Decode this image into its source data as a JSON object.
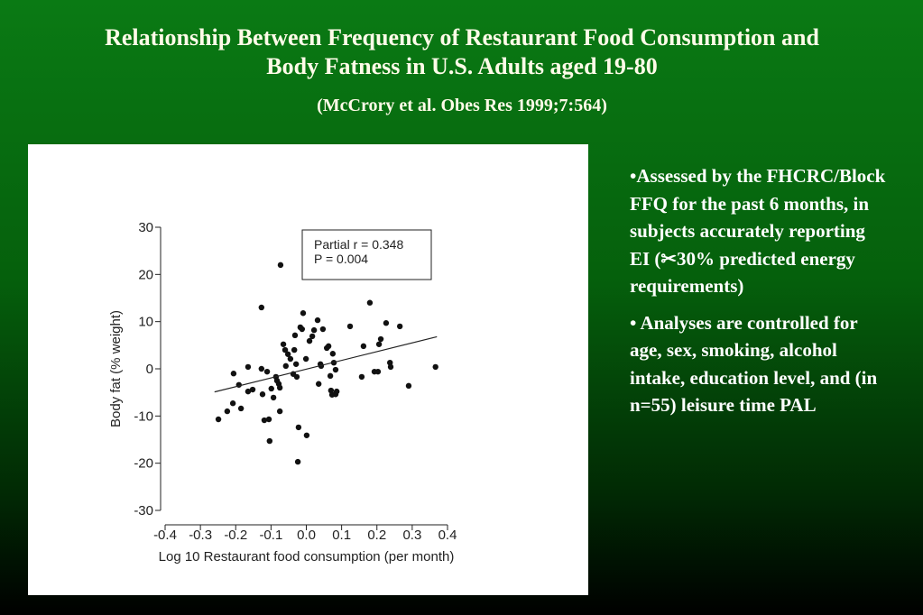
{
  "title": "Relationship Between Frequency of Restaurant Food Consumption and Body Fatness in U.S. Adults aged 19-80",
  "subtitle": "(McCrory et al. Obes Res 1999;7:564)",
  "bullets": [
    "•Assessed by the FHCRC/Block FFQ for the past 6 months, in subjects accurately reporting EI (✂30% predicted energy requirements)",
    "• Analyses are controlled for age, sex, smoking, alcohol intake, education level, and (in n=55) leisure time PAL"
  ],
  "chart_data": {
    "type": "scatter",
    "x_label": "Log 10 Restaurant food consumption (per month)",
    "y_label": "Body fat (% weight)",
    "annotations": [
      "Partial r = 0.348",
      "P = 0.004"
    ],
    "color": "#111111",
    "xlim": [
      -0.4,
      0.4
    ],
    "xticks": [
      -0.4,
      -0.3,
      -0.2,
      -0.1,
      {
        "value": 0,
        "label": "0.0"
      },
      0.1,
      0.2,
      0.3,
      0.4
    ],
    "ylim": [
      -30,
      30
    ],
    "yticks": [
      -30,
      -20,
      -10,
      0,
      10,
      20,
      30
    ],
    "x": [
      -0.249,
      -0.224,
      -0.208,
      -0.206,
      -0.191,
      -0.185,
      -0.165,
      -0.165,
      -0.152,
      -0.127,
      -0.127,
      -0.124,
      -0.119,
      -0.111,
      -0.106,
      -0.104,
      -0.099,
      -0.093,
      -0.086,
      -0.083,
      -0.078,
      -0.075,
      -0.075,
      -0.073,
      -0.065,
      -0.06,
      -0.058,
      -0.052,
      -0.045,
      -0.037,
      -0.034,
      -0.032,
      -0.029,
      -0.027,
      -0.024,
      -0.022,
      -0.017,
      -0.012,
      -0.009,
      -0.001,
      0.001,
      0.009,
      0.017,
      0.022,
      0.032,
      0.035,
      0.04,
      0.042,
      0.047,
      0.058,
      0.063,
      0.068,
      0.07,
      0.073,
      0.075,
      0.078,
      0.083,
      0.083,
      0.086,
      0.124,
      0.157,
      0.162,
      0.18,
      0.193,
      0.203,
      0.206,
      0.211,
      0.226,
      0.237,
      0.239,
      0.265,
      0.29,
      0.366
    ],
    "values": [
      -10.7,
      -9.0,
      -7.3,
      -1.0,
      -3.4,
      -8.4,
      0.4,
      -4.8,
      -4.4,
      13.0,
      0,
      -5.4,
      -10.9,
      -0.6,
      -10.7,
      -15.3,
      -4.2,
      -6.1,
      -1.7,
      -2.5,
      -3.2,
      -4.0,
      -9.0,
      22.0,
      5.2,
      4.0,
      0.6,
      3.1,
      2.1,
      -1.1,
      4.0,
      7.1,
      1.0,
      -1.7,
      -19.7,
      -12.4,
      8.8,
      8.4,
      11.8,
      2.1,
      -14.1,
      5.9,
      6.9,
      8.2,
      10.3,
      -3.2,
      1.0,
      0.6,
      8.4,
      4.4,
      4.8,
      -1.5,
      -4.6,
      -5.5,
      3.2,
      1.3,
      -0.2,
      -5.4,
      -4.8,
      9.0,
      -1.7,
      4.8,
      14.0,
      -0.6,
      -0.6,
      5.2,
      6.3,
      9.7,
      1.3,
      0.4,
      9.0,
      -3.6,
      0.4
    ],
    "trendline": {
      "x": [
        -0.26,
        0.37
      ],
      "y": [
        -4.9,
        6.8
      ]
    }
  }
}
